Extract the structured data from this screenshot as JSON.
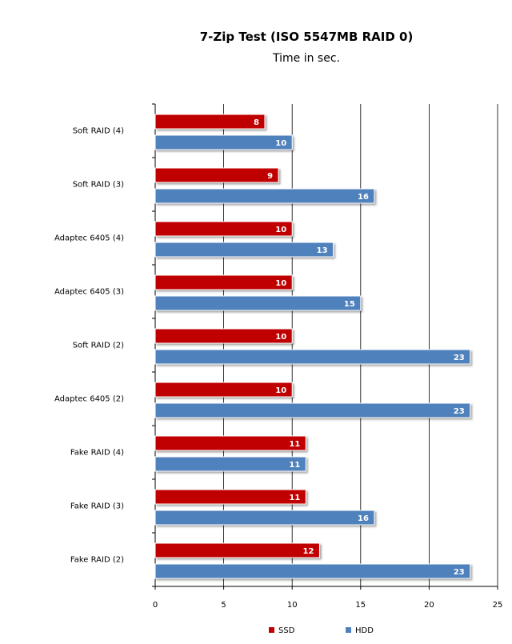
{
  "chart_data": {
    "type": "bar",
    "orientation": "horizontal",
    "title": "7-Zip Test (ISO 5547MB RAID 0)",
    "subtitle": "Time in sec.",
    "categories": [
      "Soft RAID (4)",
      "Soft RAID (3)",
      "Adaptec 6405 (4)",
      "Adaptec 6405 (3)",
      "Soft RAID (2)",
      "Adaptec 6405 (2)",
      "Fake RAID (4)",
      "Fake RAID (3)",
      "Fake RAID (2)"
    ],
    "series": [
      {
        "name": "SSD",
        "color": "#c00000",
        "values": [
          8,
          9,
          10,
          10,
          10,
          10,
          11,
          11,
          12
        ]
      },
      {
        "name": "HDD",
        "color": "#4f81bd",
        "values": [
          10,
          16,
          13,
          15,
          23,
          23,
          11,
          16,
          23
        ]
      }
    ],
    "xlim": [
      0,
      25
    ],
    "xticks": [
      0,
      5,
      10,
      15,
      20,
      25
    ],
    "grid": true,
    "data_labels": true,
    "legend": "bottom"
  }
}
